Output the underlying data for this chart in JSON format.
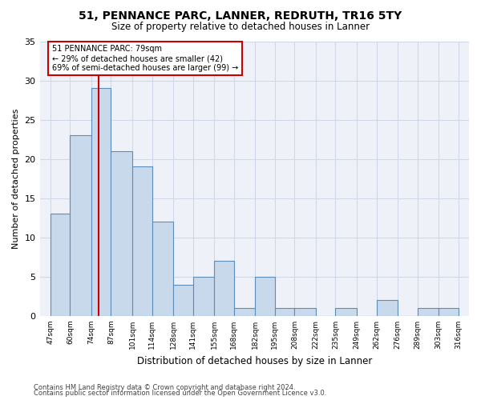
{
  "title": "51, PENNANCE PARC, LANNER, REDRUTH, TR16 5TY",
  "subtitle": "Size of property relative to detached houses in Lanner",
  "xlabel": "Distribution of detached houses by size in Lanner",
  "ylabel": "Number of detached properties",
  "bar_edges": [
    47,
    60,
    74,
    87,
    101,
    114,
    128,
    141,
    155,
    168,
    182,
    195,
    208,
    222,
    235,
    249,
    262,
    276,
    289,
    303,
    316
  ],
  "bar_heights": [
    13,
    23,
    29,
    21,
    19,
    12,
    4,
    5,
    7,
    1,
    5,
    1,
    1,
    0,
    1,
    0,
    2,
    0,
    1,
    1
  ],
  "bar_color": "#c9d9ec",
  "bar_edge_color": "#5b8db8",
  "property_size": 79,
  "vline_color": "#cc0000",
  "annotation_line1": "51 PENNANCE PARC: 79sqm",
  "annotation_line2": "← 29% of detached houses are smaller (42)",
  "annotation_line3": "69% of semi-detached houses are larger (99) →",
  "annotation_box_edge": "#cc0000",
  "ylim": [
    0,
    35
  ],
  "yticks": [
    0,
    5,
    10,
    15,
    20,
    25,
    30,
    35
  ],
  "grid_color": "#d0d8e8",
  "background_color": "#eef2f8",
  "footer_line1": "Contains HM Land Registry data © Crown copyright and database right 2024.",
  "footer_line2": "Contains public sector information licensed under the Open Government Licence v3.0."
}
